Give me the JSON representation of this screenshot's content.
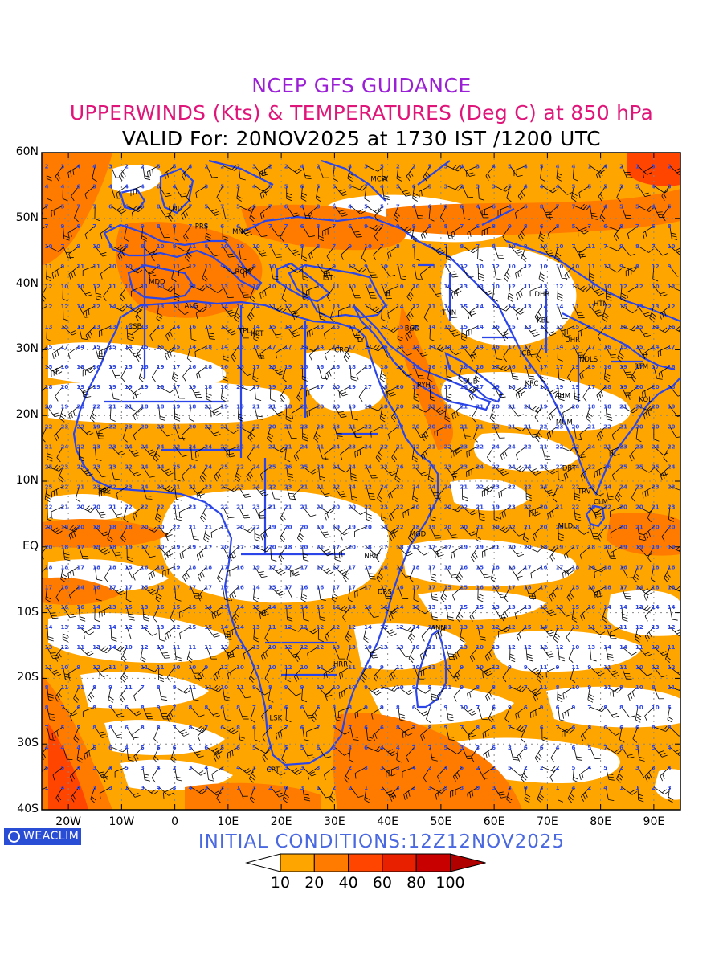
{
  "header": {
    "line1": "NCEP GFS GUIDANCE",
    "line2": "UPPERWINDS (Kts) & TEMPERATURES (Deg C) at 850 hPa",
    "line3": "VALID For: 20NOV2025 at 1730 IST /1200 UTC"
  },
  "map": {
    "latitude_labels": [
      "60N",
      "50N",
      "40N",
      "30N",
      "20N",
      "10N",
      "EQ",
      "10S",
      "20S",
      "30S",
      "40S"
    ],
    "longitude_labels": [
      "20W",
      "10W",
      "0",
      "10E",
      "20E",
      "30E",
      "40E",
      "50E",
      "60E",
      "70E",
      "80E",
      "90E"
    ],
    "stations": [
      {
        "code": "MCW",
        "lat": 56,
        "lon": 38
      },
      {
        "code": "LND",
        "lat": 51.5,
        "lon": 0
      },
      {
        "code": "PRS",
        "lat": 48.8,
        "lon": 5
      },
      {
        "code": "MNC",
        "lat": 48,
        "lon": 12
      },
      {
        "code": "MDD",
        "lat": 40.4,
        "lon": -3.7
      },
      {
        "code": "ROM",
        "lat": 41.9,
        "lon": 12.5
      },
      {
        "code": "IST",
        "lat": 41,
        "lon": 29
      },
      {
        "code": "ALG",
        "lat": 36.7,
        "lon": 3
      },
      {
        "code": "CSB",
        "lat": 33.6,
        "lon": -7.6
      },
      {
        "code": "TPL",
        "lat": 32.9,
        "lon": 13.2
      },
      {
        "code": "KRT",
        "lat": 32.5,
        "lon": 15.5
      },
      {
        "code": "THN",
        "lat": 35.7,
        "lon": 51.4
      },
      {
        "code": "BGD",
        "lat": 33.3,
        "lon": 44.4
      },
      {
        "code": "DHB",
        "lat": 38.5,
        "lon": 68.8
      },
      {
        "code": "KBL",
        "lat": 34.5,
        "lon": 69.2
      },
      {
        "code": "HTN",
        "lat": 37,
        "lon": 79.9
      },
      {
        "code": "CRO",
        "lat": 30,
        "lon": 31.2
      },
      {
        "code": "LY",
        "lat": 31.5,
        "lon": 35.5
      },
      {
        "code": "DHR",
        "lat": 31.5,
        "lon": 74.5
      },
      {
        "code": "JCB",
        "lat": 29.5,
        "lon": 66
      },
      {
        "code": "NDLS",
        "lat": 28.6,
        "lon": 77.2
      },
      {
        "code": "RTM",
        "lat": 27.5,
        "lon": 87.5
      },
      {
        "code": "RYH",
        "lat": 24.7,
        "lon": 46.7
      },
      {
        "code": "DUB",
        "lat": 25.2,
        "lon": 55.3
      },
      {
        "code": "KRC",
        "lat": 24.9,
        "lon": 67
      },
      {
        "code": "AHM",
        "lat": 23,
        "lon": 72.6
      },
      {
        "code": "KOL",
        "lat": 22.5,
        "lon": 88.4
      },
      {
        "code": "MUM",
        "lat": 19,
        "lon": 72.8
      },
      {
        "code": "DBT",
        "lat": 12,
        "lon": 74
      },
      {
        "code": "TRV",
        "lat": 8.5,
        "lon": 76.9
      },
      {
        "code": "CLM",
        "lat": 6.9,
        "lon": 79.9
      },
      {
        "code": "MLD",
        "lat": 3.2,
        "lon": 73.2
      },
      {
        "code": "MGD",
        "lat": 2,
        "lon": 45.3
      },
      {
        "code": "NRB",
        "lat": -1.3,
        "lon": 36.8
      },
      {
        "code": "DRS",
        "lat": -6.8,
        "lon": 39.3
      },
      {
        "code": "ANN",
        "lat": -12.3,
        "lon": 49.3
      },
      {
        "code": "HRR",
        "lat": -17.8,
        "lon": 31
      },
      {
        "code": "LSK",
        "lat": -26,
        "lon": 19
      },
      {
        "code": "CPT",
        "lat": -33.9,
        "lon": 18.4
      },
      {
        "code": "SPL",
        "lat": 8.5,
        "lon": -13.2
      }
    ]
  },
  "logo": {
    "text": "WEACLIM"
  },
  "footer": {
    "initial_conditions": "INITIAL  CONDITIONS:12Z12NOV2025"
  },
  "colorbar": {
    "levels": [
      "10",
      "20",
      "40",
      "60",
      "80",
      "100"
    ],
    "colors": [
      "#ffa500",
      "#ff7b00",
      "#ff4500",
      "#e82000",
      "#c80000"
    ],
    "under_color": "#ffffff",
    "over_color": "#b00000"
  },
  "colors": {
    "land_outline": "#2b45e8",
    "temperature_text": "#2b45e8",
    "wind_barb": "#000000",
    "title_line1": "#9b1fd6",
    "title_line2": "#e0157a"
  }
}
